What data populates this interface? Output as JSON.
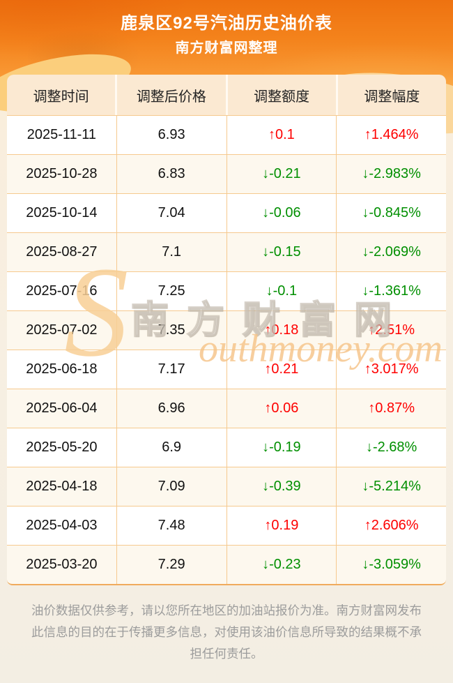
{
  "header": {
    "title": "鹿泉区92号汽油历史油价表",
    "subtitle": "南方财富网整理"
  },
  "table": {
    "columns": [
      "调整时间",
      "调整后价格",
      "调整额度",
      "调整幅度"
    ],
    "rows": [
      {
        "date": "2025-11-11",
        "price": "6.93",
        "change": "↑0.1",
        "percent": "↑1.464%",
        "direction": "up"
      },
      {
        "date": "2025-10-28",
        "price": "6.83",
        "change": "↓-0.21",
        "percent": "↓-2.983%",
        "direction": "down"
      },
      {
        "date": "2025-10-14",
        "price": "7.04",
        "change": "↓-0.06",
        "percent": "↓-0.845%",
        "direction": "down"
      },
      {
        "date": "2025-08-27",
        "price": "7.1",
        "change": "↓-0.15",
        "percent": "↓-2.069%",
        "direction": "down"
      },
      {
        "date": "2025-07-16",
        "price": "7.25",
        "change": "↓-0.1",
        "percent": "↓-1.361%",
        "direction": "down"
      },
      {
        "date": "2025-07-02",
        "price": "7.35",
        "change": "↑0.18",
        "percent": "↑2.51%",
        "direction": "up"
      },
      {
        "date": "2025-06-18",
        "price": "7.17",
        "change": "↑0.21",
        "percent": "↑3.017%",
        "direction": "up"
      },
      {
        "date": "2025-06-04",
        "price": "6.96",
        "change": "↑0.06",
        "percent": "↑0.87%",
        "direction": "up"
      },
      {
        "date": "2025-05-20",
        "price": "6.9",
        "change": "↓-0.19",
        "percent": "↓-2.68%",
        "direction": "down"
      },
      {
        "date": "2025-04-18",
        "price": "7.09",
        "change": "↓-0.39",
        "percent": "↓-5.214%",
        "direction": "down"
      },
      {
        "date": "2025-04-03",
        "price": "7.48",
        "change": "↑0.19",
        "percent": "↑2.606%",
        "direction": "up"
      },
      {
        "date": "2025-03-20",
        "price": "7.29",
        "change": "↓-0.23",
        "percent": "↓-3.059%",
        "direction": "down"
      }
    ]
  },
  "watermark": {
    "initial": "S",
    "cn": "南方财富网",
    "en": "outhmoney.com"
  },
  "footer": {
    "disclaimer": "油价数据仅供参考，请以您所在地区的加油站报价为准。南方财富网发布此信息的目的在于传播更多信息，对使用该油价信息所导致的结果概不承担任何责任。"
  },
  "colors": {
    "up": "#fe0000",
    "down": "#008f00",
    "accent_orange": "#f4831c"
  }
}
